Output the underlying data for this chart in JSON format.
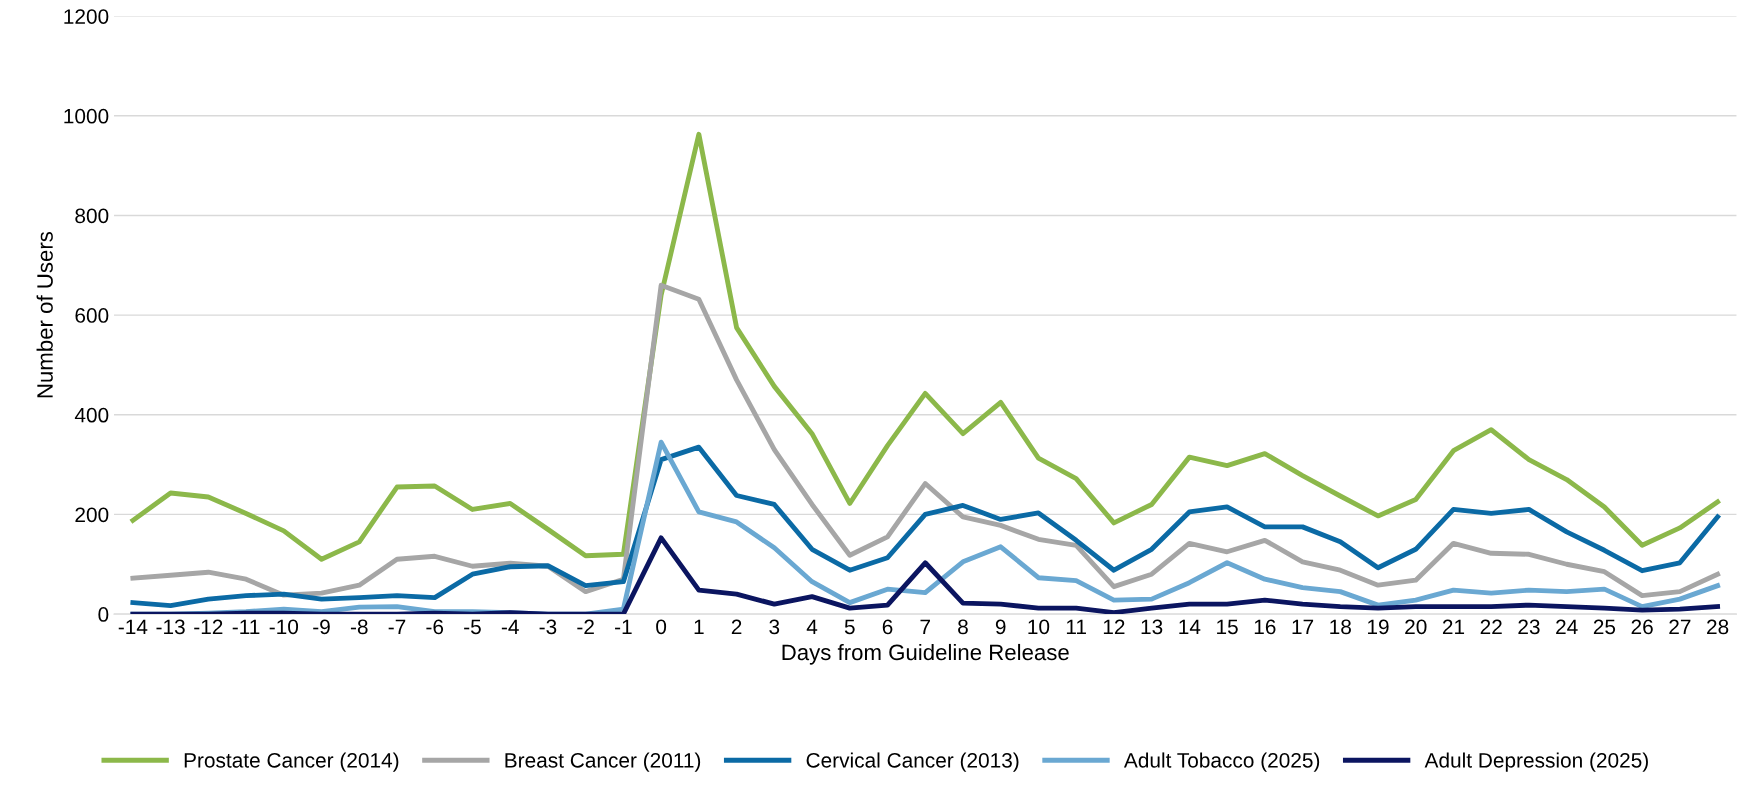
{
  "chart_data": {
    "type": "line",
    "xlabel": "Days from Guideline Release",
    "ylabel": "Number of Users",
    "categories": [
      "-14",
      "-13",
      "-12",
      "-11",
      "-10",
      "-9",
      "-8",
      "-7",
      "-6",
      "-5",
      "-4",
      "-3",
      "-2",
      "-1",
      "0",
      "1",
      "2",
      "3",
      "4",
      "5",
      "6",
      "7",
      "8",
      "9",
      "10",
      "11",
      "12",
      "13",
      "14",
      "15",
      "16",
      "17",
      "18",
      "19",
      "20",
      "21",
      "22",
      "23",
      "24",
      "25",
      "26",
      "27",
      "28"
    ],
    "ylim": [
      0,
      1200
    ],
    "yticks": [
      0,
      200,
      400,
      600,
      800,
      1000,
      1200
    ],
    "grid": "y",
    "legend": "bottom",
    "marker": "none",
    "line_style": "solid",
    "series": [
      {
        "name": "Prostate Cancer (2014)",
        "color": "#8cb84a",
        "values": [
          188,
          243,
          235,
          202,
          167,
          110,
          145,
          255,
          257,
          210,
          222,
          170,
          117,
          120,
          640,
          963,
          575,
          457,
          362,
          222,
          338,
          443,
          362,
          425,
          313,
          272,
          183,
          220,
          315,
          298,
          322,
          278,
          237,
          197,
          230,
          328,
          370,
          310,
          270,
          215,
          138,
          173,
          225
        ]
      },
      {
        "name": "Breast Cancer (2011)",
        "color": "#a6a6a6",
        "values": [
          72,
          78,
          84,
          70,
          38,
          42,
          58,
          110,
          116,
          96,
          102,
          96,
          45,
          70,
          660,
          632,
          470,
          330,
          220,
          118,
          155,
          262,
          195,
          178,
          150,
          138,
          55,
          80,
          142,
          125,
          148,
          105,
          88,
          58,
          68,
          142,
          122,
          120,
          100,
          85,
          37,
          45,
          80
        ]
      },
      {
        "name": "Cervical Cancer (2013)",
        "color": "#0b6aa5",
        "values": [
          23,
          17,
          30,
          37,
          40,
          30,
          33,
          37,
          33,
          80,
          95,
          97,
          57,
          65,
          310,
          335,
          238,
          220,
          130,
          88,
          113,
          200,
          218,
          190,
          203,
          148,
          88,
          130,
          205,
          215,
          175,
          175,
          145,
          93,
          130,
          210,
          202,
          210,
          165,
          128,
          87,
          103,
          195
        ]
      },
      {
        "name": "Adult Tobacco (2025)",
        "color": "#6aa8d2",
        "values": [
          0,
          0,
          2,
          5,
          10,
          5,
          14,
          15,
          5,
          5,
          3,
          0,
          0,
          10,
          345,
          205,
          185,
          133,
          65,
          23,
          50,
          43,
          105,
          135,
          73,
          67,
          28,
          30,
          63,
          103,
          70,
          53,
          45,
          18,
          28,
          48,
          42,
          48,
          45,
          50,
          15,
          30,
          57
        ]
      },
      {
        "name": "Adult Depression (2025)",
        "color": "#0b1560",
        "values": [
          0,
          0,
          0,
          2,
          2,
          0,
          0,
          0,
          2,
          0,
          3,
          0,
          0,
          0,
          153,
          48,
          40,
          20,
          35,
          12,
          18,
          103,
          22,
          20,
          12,
          12,
          3,
          12,
          20,
          20,
          28,
          20,
          15,
          12,
          15,
          15,
          15,
          18,
          15,
          12,
          8,
          10,
          15
        ]
      }
    ]
  }
}
